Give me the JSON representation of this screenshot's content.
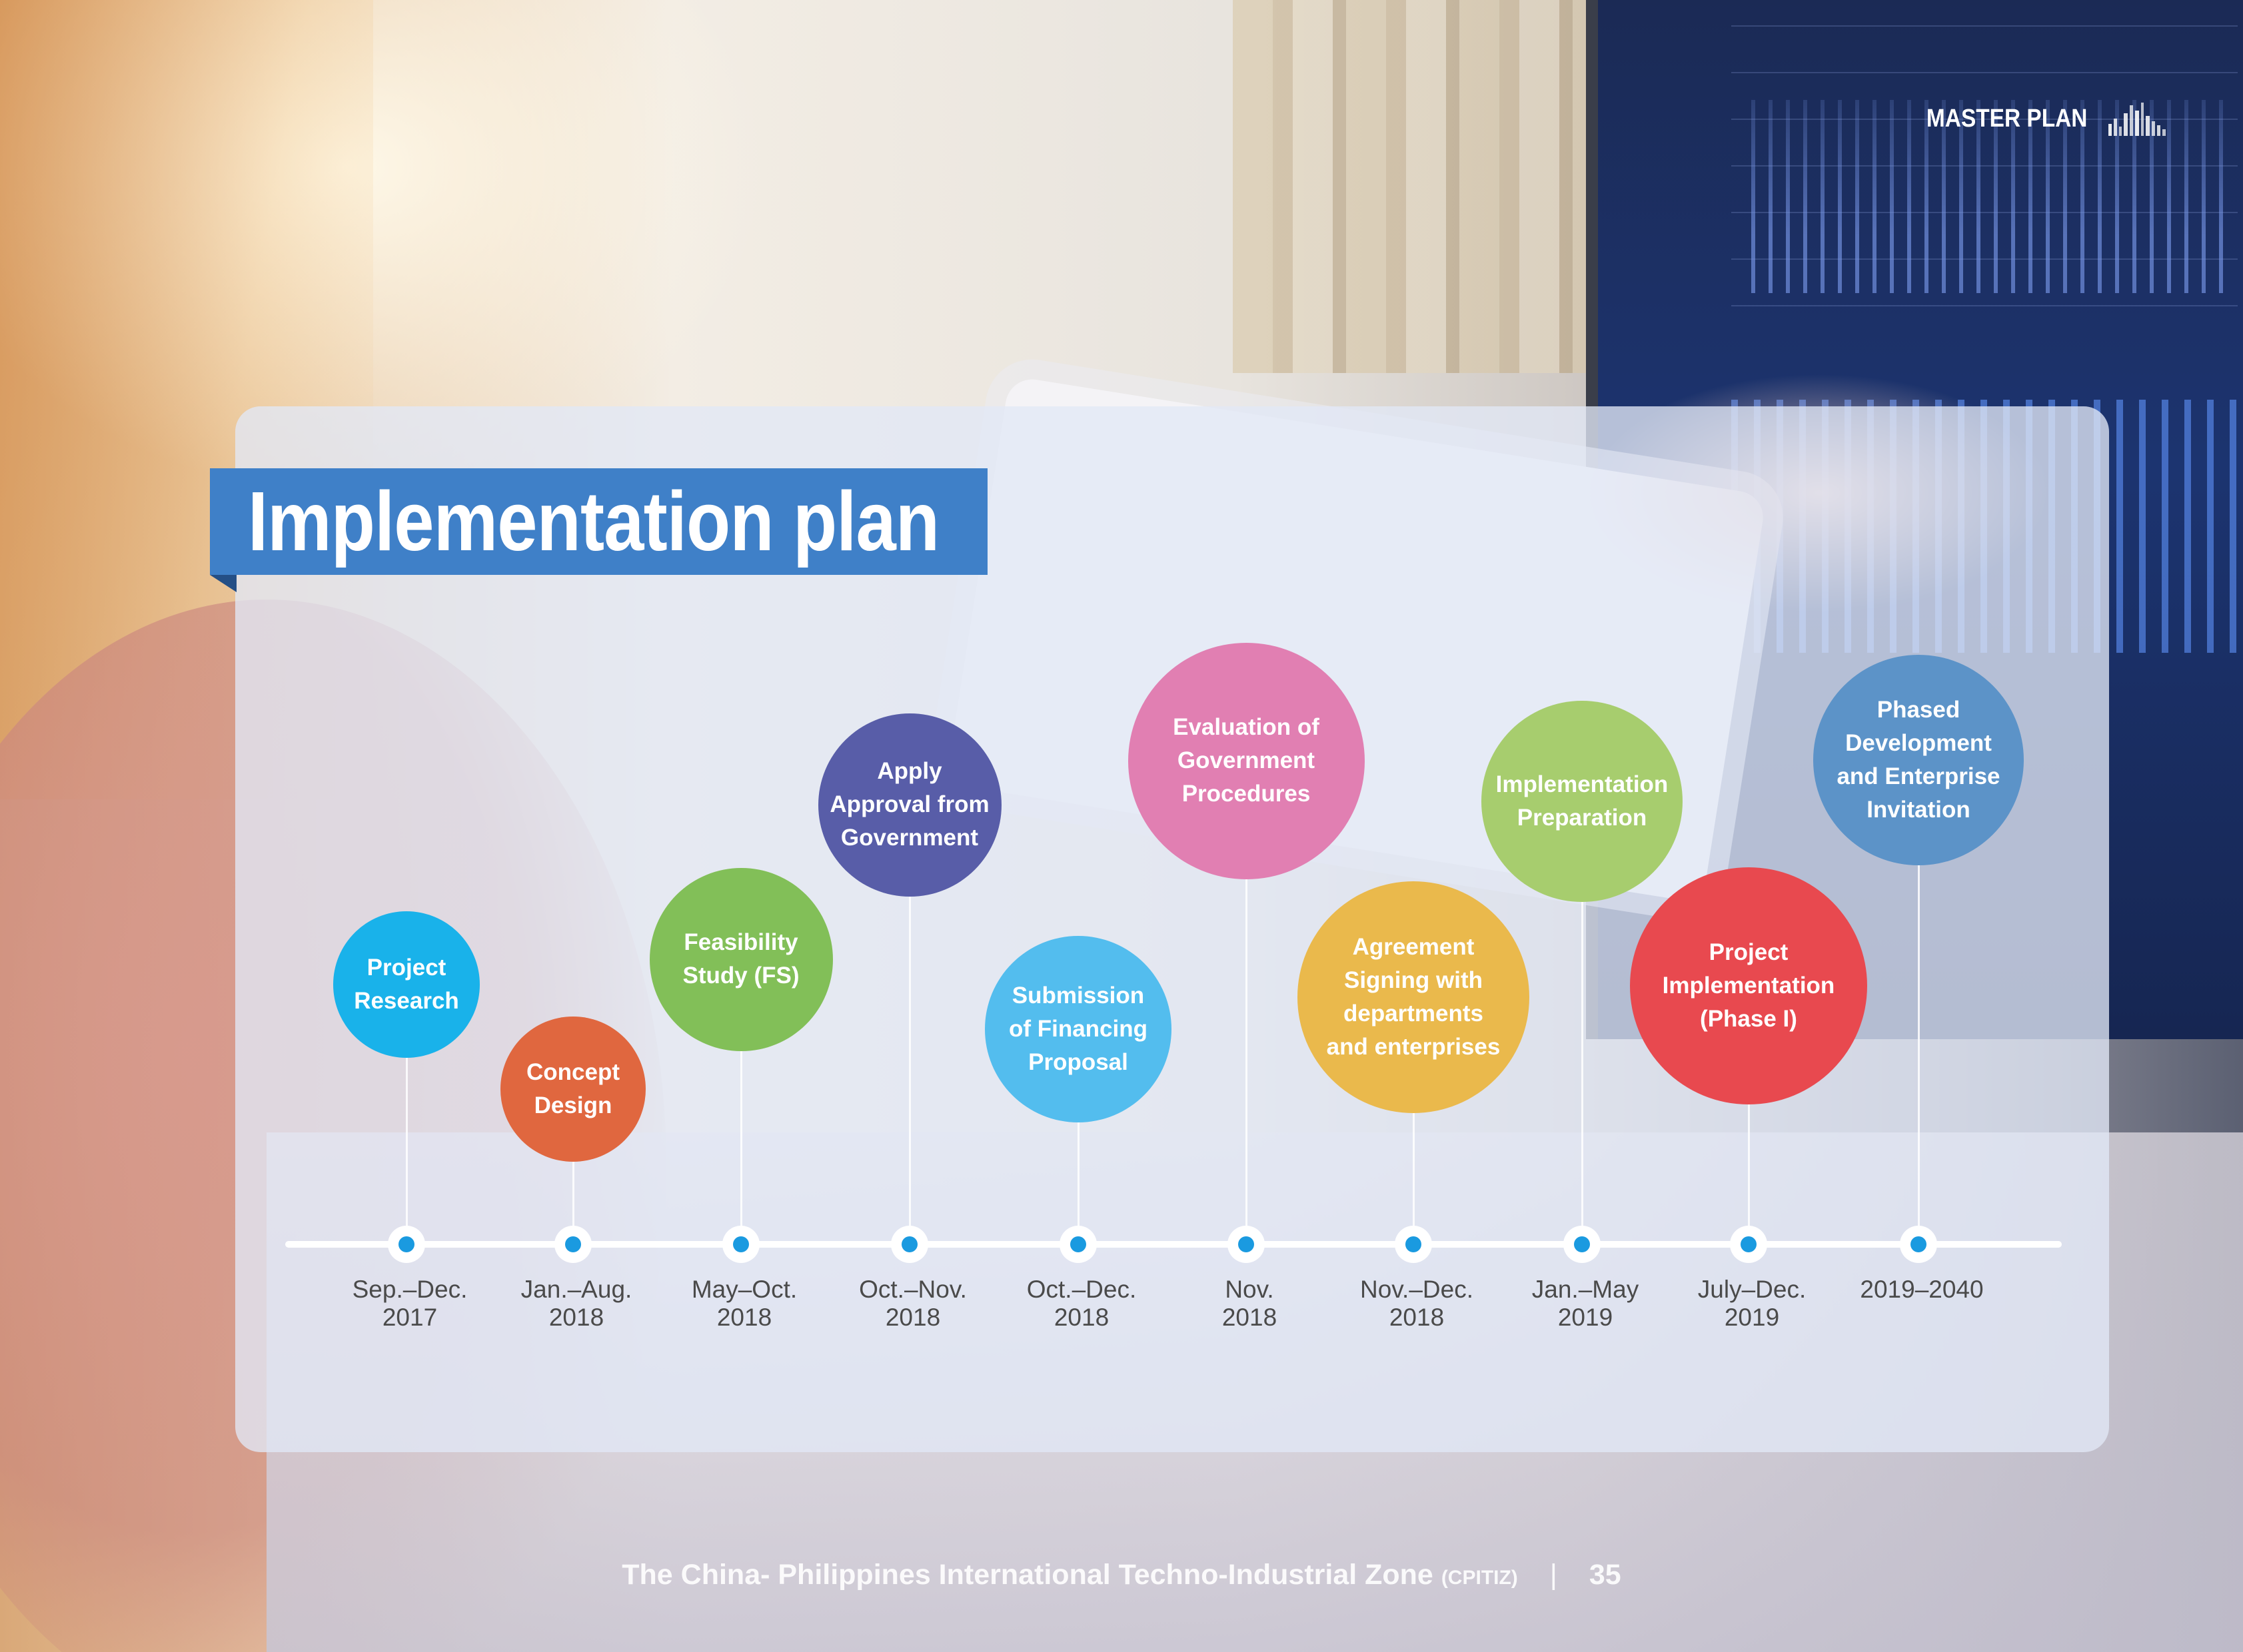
{
  "header": {
    "section_label": "MASTER PLAN"
  },
  "title": "Implementation plan",
  "colors": {
    "title_bar": "#3f80c8",
    "axis_dot": "#1a9ae0",
    "panel": "#e2e8f6"
  },
  "milestones": [
    {
      "label": "Project\nResearch",
      "date_line1": "Sep.–Dec.",
      "date_line2": "2017",
      "color": "#19b2ea"
    },
    {
      "label": "Concept\nDesign",
      "date_line1": "Jan.–Aug.",
      "date_line2": "2018",
      "color": "#e0673f"
    },
    {
      "label": "Feasibility\nStudy (FS)",
      "date_line1": "May–Oct.",
      "date_line2": "2018",
      "color": "#82bf58"
    },
    {
      "label": "Apply\nApproval from\nGovernment",
      "date_line1": "Oct.–Nov.",
      "date_line2": "2018",
      "color": "#585da8"
    },
    {
      "label": "Submission\nof Financing\nProposal",
      "date_line1": "Oct.–Dec.",
      "date_line2": "2018",
      "color": "#53bdee"
    },
    {
      "label": "Evaluation of\nGovernment\nProcedures",
      "date_line1": "Nov.",
      "date_line2": "2018",
      "color": "#e17fb2"
    },
    {
      "label": "Agreement\nSigning with\ndepartments\nand enterprises",
      "date_line1": "Nov.–Dec.",
      "date_line2": "2018",
      "color": "#eab94c"
    },
    {
      "label": "Implementation\nPreparation",
      "date_line1": "Jan.–May",
      "date_line2": "2019",
      "color": "#a7cd6e"
    },
    {
      "label": "Project\nImplementation\n(Phase I)",
      "date_line1": "July–Dec.",
      "date_line2": "2019",
      "color": "#e8494f"
    },
    {
      "label": "Phased\nDevelopment\nand Enterprise\nInvitation",
      "date_line1": "2019–2040",
      "date_line2": "",
      "color": "#5c93c8"
    }
  ],
  "footer": {
    "text": "The China- Philippines International Techno-Industrial Zone",
    "abbr": "(CPITIZ)",
    "separator": "|",
    "page_number": "35"
  }
}
